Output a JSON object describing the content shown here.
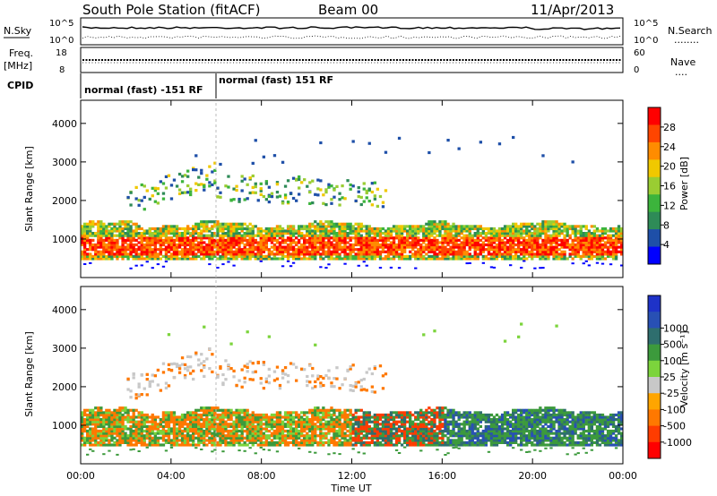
{
  "header": {
    "station": "South Pole Station (fitACF)",
    "beam": "Beam 00",
    "date": "11/Apr/2013"
  },
  "top_panel": {
    "left_label": "N.Sky",
    "right_label": "N.Search",
    "right_dots": "........",
    "tick_hi": "10^5",
    "tick_lo": "10^0"
  },
  "freq_panel": {
    "left_label_1": "Freq.",
    "left_label_2": "[MHz]",
    "tick_hi": "18",
    "tick_lo": "8",
    "right_label": "Nave",
    "right_dots": "....",
    "right_tick_hi": "60",
    "right_tick_lo": "0"
  },
  "cpid_panel": {
    "label": "CPID",
    "mode_1": "normal (fast) -151 RF",
    "mode_2": "normal (fast) 151 RF"
  },
  "colors": {
    "power": [
      "#0000ff",
      "#1e4fa8",
      "#2e8b57",
      "#3cb43c",
      "#9acd32",
      "#f0c800",
      "#ff8c00",
      "#ff4500",
      "#ff0000"
    ],
    "velocity": [
      "#ff0000",
      "#ff3c00",
      "#ff7800",
      "#ffa500",
      "#c8c8c8",
      "#7cd43c",
      "#3c9a3c",
      "#2e6e6e",
      "#2850b4",
      "#1e32c8"
    ]
  },
  "chart_data": [
    {
      "type": "heatmap",
      "name": "power",
      "xlabel": "",
      "ylabel": "Slant Range [km]",
      "y_ticks": [
        "1000",
        "2000",
        "3000",
        "4000"
      ],
      "ylim": [
        0,
        4600
      ],
      "xlim": [
        0,
        24
      ],
      "colorbar_label": "Power [dB]",
      "colorbar_ticks": [
        "4",
        "8",
        "12",
        "16",
        "20",
        "24",
        "28"
      ],
      "colorbar_range": [
        0,
        32
      ]
    },
    {
      "type": "heatmap",
      "name": "velocity",
      "xlabel": "Time UT",
      "ylabel": "Slant Range [km]",
      "y_ticks": [
        "1000",
        "2000",
        "3000",
        "4000"
      ],
      "ylim": [
        0,
        4600
      ],
      "xlim": [
        0,
        24
      ],
      "x_ticks": [
        "00:00",
        "04:00",
        "08:00",
        "12:00",
        "16:00",
        "20:00",
        "00:00"
      ],
      "colorbar_label": "Velocity [m s⁻¹]",
      "colorbar_ticks": [
        "-1000",
        "-500",
        "-100",
        "-25",
        "25",
        "100",
        "500",
        "1000"
      ]
    }
  ]
}
